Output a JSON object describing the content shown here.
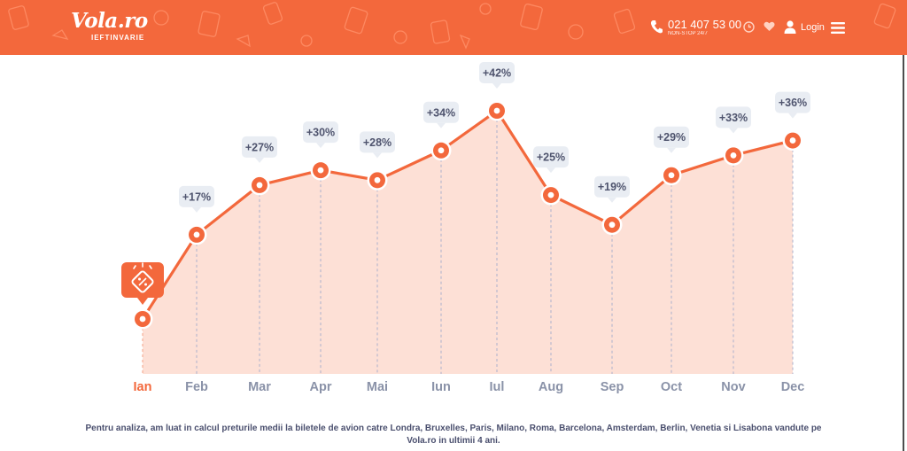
{
  "header": {
    "logo_text": "Vola.ro",
    "logo_tagline": "IEFTINVARIE",
    "phone": "021 407 53 00",
    "phone_sub": "NON-STOP 24/7",
    "login_label": "Login",
    "brand_color": "#f3683c",
    "icons": [
      "phone-icon",
      "clock-icon",
      "heart-icon",
      "user-icon",
      "menu-icon"
    ]
  },
  "chart_data": {
    "type": "area",
    "categories": [
      "Ian",
      "Feb",
      "Mar",
      "Apr",
      "Mai",
      "Iun",
      "Iul",
      "Aug",
      "Sep",
      "Oct",
      "Nov",
      "Dec"
    ],
    "values": [
      0,
      17,
      27,
      30,
      28,
      34,
      42,
      25,
      19,
      29,
      33,
      36
    ],
    "data_labels": [
      "",
      "+17%",
      "+27%",
      "+30%",
      "+28%",
      "+34%",
      "+42%",
      "+25%",
      "+19%",
      "+29%",
      "+33%",
      "+36%"
    ],
    "highlight_category": "Ian",
    "highlight_marker": "discount-tag-icon",
    "ylim": [
      0,
      42
    ],
    "grid": false,
    "line_color": "#f3683c",
    "fill_color": "#fde0d6",
    "label_bg": "#e9edf3",
    "tick_color": "#8a92a8"
  },
  "footnote": {
    "text": "Pentru analiza, am luat in calcul preturile medii la biletele de avion catre Londra, Bruxelles, Paris, Milano, Roma, Barcelona, Amsterdam, Berlin, Venetia si Lisabona vandute pe Vola.ro in ultimii 4 ani."
  }
}
